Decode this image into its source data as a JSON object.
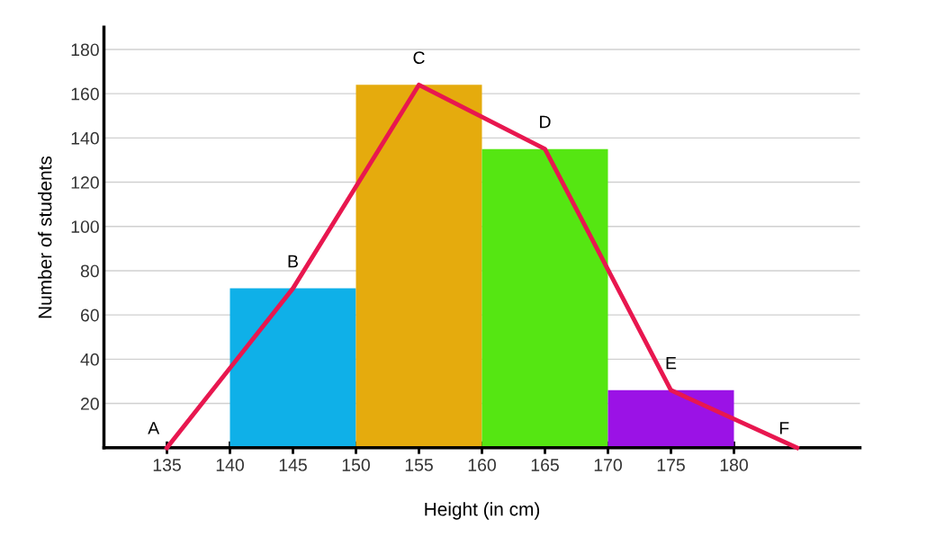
{
  "chart_data": {
    "type": "histogram",
    "xlabel": "Height (in cm)",
    "ylabel": "Number of students",
    "bins": [
      140,
      150,
      160,
      170,
      180
    ],
    "values": [
      72,
      164,
      135,
      26
    ],
    "colors": [
      "#0fb0e8",
      "#e5ab0d",
      "#55e612",
      "#9b12e6"
    ],
    "series": [
      {
        "type": "line",
        "color": "#e8174f",
        "x": [
          135,
          145,
          155,
          165,
          175,
          185
        ],
        "values": [
          0,
          72,
          164,
          135,
          26,
          0
        ]
      }
    ],
    "annotations": [
      {
        "text": "A",
        "x": 135,
        "y": 0
      },
      {
        "text": "B",
        "x": 145,
        "y": 72
      },
      {
        "text": "C",
        "x": 155,
        "y": 164
      },
      {
        "text": "D",
        "x": 165,
        "y": 135
      },
      {
        "text": "E",
        "x": 175,
        "y": 26
      },
      {
        "text": "F",
        "x": 185,
        "y": 0
      }
    ],
    "xlim": [
      130,
      190
    ],
    "ylim": [
      0,
      190
    ],
    "xticks": [
      135,
      140,
      145,
      150,
      155,
      160,
      165,
      170,
      175,
      180
    ],
    "yticks": [
      20,
      40,
      60,
      80,
      100,
      120,
      140,
      160,
      180
    ],
    "grid": "y"
  }
}
